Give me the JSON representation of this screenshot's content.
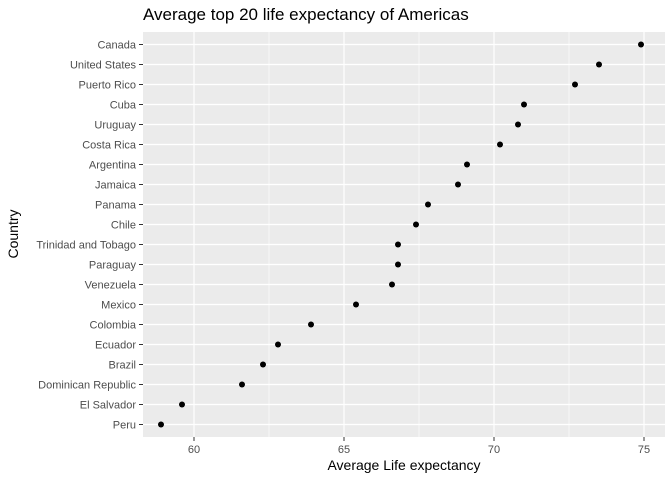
{
  "chart_data": {
    "type": "scatter",
    "title": "Average top 20 life expectancy of Americas",
    "xlabel": "Average Life expectancy",
    "ylabel": "Country",
    "xlim": [
      58.3,
      75.7
    ],
    "x_ticks": [
      60,
      65,
      70,
      75
    ],
    "grid": true,
    "legend": "none",
    "point_color": "#000000",
    "panel_color": "#ebebeb",
    "grid_color": "#ffffff",
    "categories": [
      "Canada",
      "United States",
      "Puerto Rico",
      "Cuba",
      "Uruguay",
      "Costa Rica",
      "Argentina",
      "Jamaica",
      "Panama",
      "Chile",
      "Trinidad and Tobago",
      "Paraguay",
      "Venezuela",
      "Mexico",
      "Colombia",
      "Ecuador",
      "Brazil",
      "Dominican Republic",
      "El Salvador",
      "Peru"
    ],
    "values": [
      74.9,
      73.5,
      72.7,
      71.0,
      70.8,
      70.2,
      69.1,
      68.8,
      67.8,
      67.4,
      66.8,
      66.8,
      66.6,
      65.4,
      63.9,
      62.8,
      62.3,
      61.6,
      59.6,
      58.9
    ]
  }
}
